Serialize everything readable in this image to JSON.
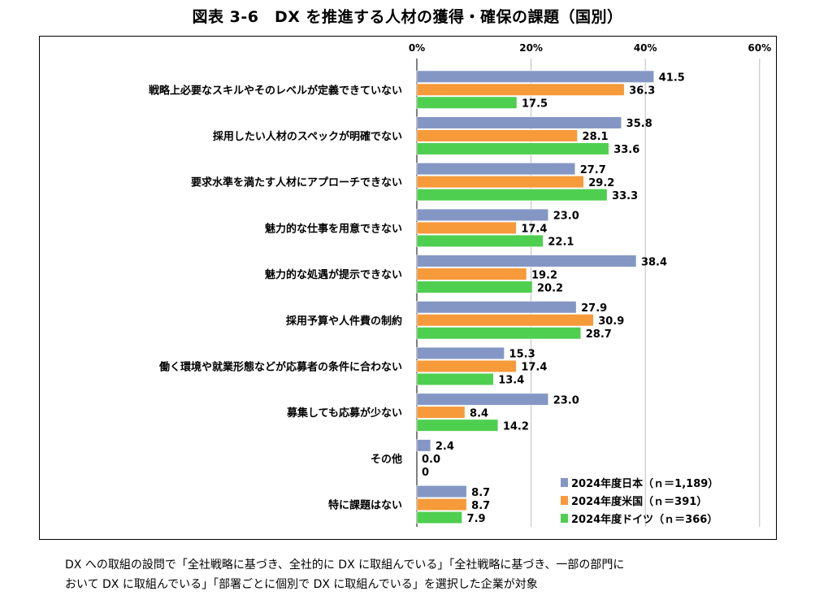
{
  "title": "図表 3-6　DX を推進する人材の獲得・確保の課題（国別）",
  "notes": [
    "DX への取組の設問で「全社戦略に基づき、全社的に DX に取組んでいる」「全社戦略に基づき、一部の部門に",
    "おいて DX に取組んでいる」「部署ごとに個別で DX に取組んでいる」を選択した企業が対象"
  ],
  "chart_data": {
    "type": "bar",
    "orientation": "horizontal",
    "title": "図表 3-6　DX を推進する人材の獲得・確保の課題（国別）",
    "xlabel": "",
    "ylabel": "",
    "xlim": [
      0,
      60
    ],
    "ticks": [
      "0%",
      "20%",
      "40%",
      "60%"
    ],
    "tick_values": [
      0,
      20,
      40,
      60
    ],
    "grid": true,
    "legend_position": "bottom-right",
    "categories": [
      "戦略上必要なスキルやそのレベルが定義できていない",
      "採用したい人材のスペックが明確でない",
      "要求水準を満たす人材にアプローチできない",
      "魅力的な仕事を用意できない",
      "魅力的な処遇が提示できない",
      "採用予算や人件費の制約",
      "働く環境や就業形態などが応募者の条件に合わない",
      "募集しても応募が少ない",
      "その他",
      "特に課題はない"
    ],
    "series": [
      {
        "name": "2024年度日本（ｎ＝1,189）",
        "color": "#8497c4",
        "values": [
          41.5,
          35.8,
          27.7,
          23.0,
          38.4,
          27.9,
          15.3,
          23.0,
          2.4,
          8.7
        ],
        "labels": [
          "41.5",
          "35.8",
          "27.7",
          "23.0",
          "38.4",
          "27.9",
          "15.3",
          "23.0",
          "2.4",
          "8.7"
        ]
      },
      {
        "name": "2024年度米国（ｎ＝391）",
        "color": "#f79a3a",
        "values": [
          36.3,
          28.1,
          29.2,
          17.4,
          19.2,
          30.9,
          17.4,
          8.4,
          0.0,
          8.7
        ],
        "labels": [
          "36.3",
          "28.1",
          "29.2",
          "17.4",
          "19.2",
          "30.9",
          "17.4",
          "8.4",
          "0.0",
          "8.7"
        ]
      },
      {
        "name": "2024年度ドイツ（ｎ＝366）",
        "color": "#4fcf50",
        "values": [
          17.5,
          33.6,
          33.3,
          22.1,
          20.2,
          28.7,
          13.4,
          14.2,
          0,
          7.9
        ],
        "labels": [
          "17.5",
          "33.6",
          "33.3",
          "22.1",
          "20.2",
          "28.7",
          "13.4",
          "14.2",
          "0",
          "7.9"
        ]
      }
    ]
  }
}
